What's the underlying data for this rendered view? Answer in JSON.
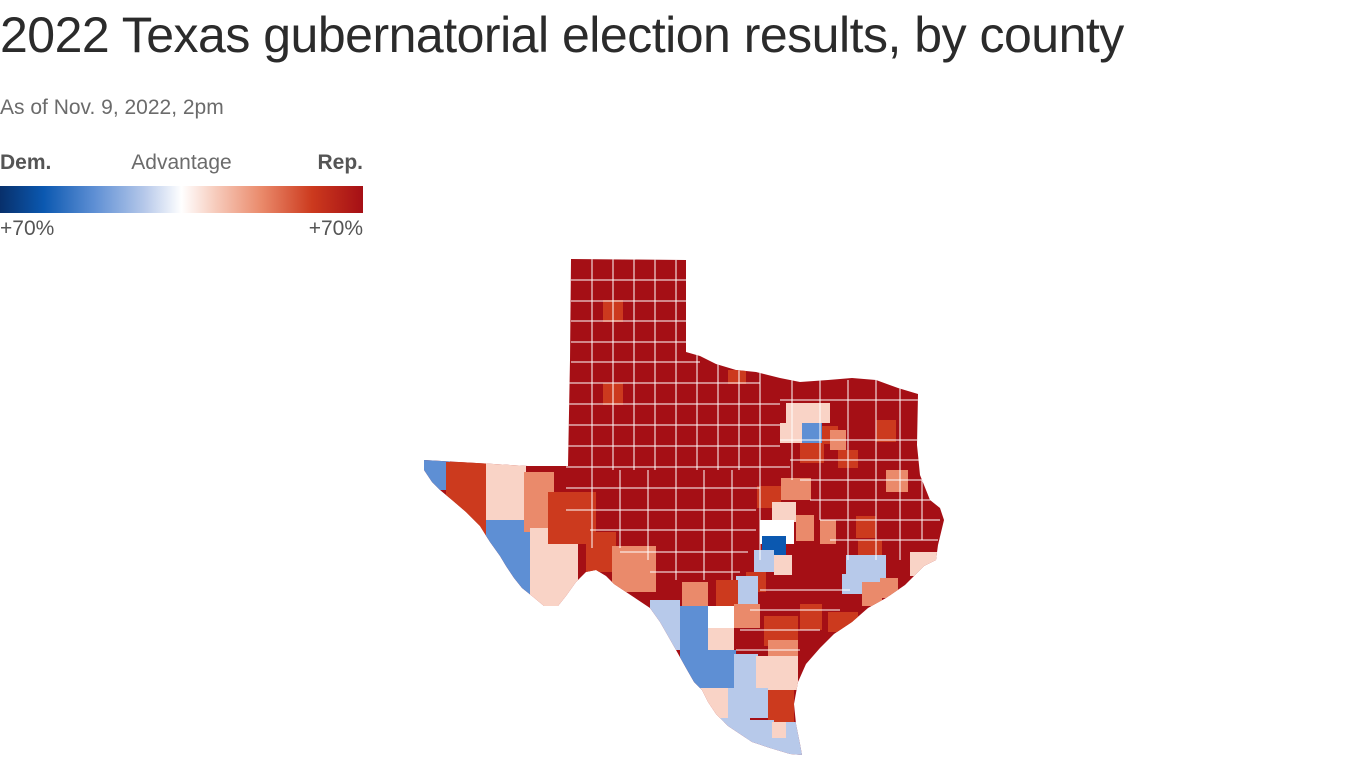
{
  "header": {
    "title": "2022 Texas gubernatorial election results, by county",
    "subtitle": "As of Nov. 9, 2022, 2pm"
  },
  "legend": {
    "left_label": "Dem.",
    "center_label": "Advantage",
    "right_label": "Rep.",
    "left_value": "+70%",
    "right_value": "+70%"
  },
  "colors": {
    "dem_strong": "#0b58b0",
    "dem_mid": "#5e8fd4",
    "dem_light": "#b7c9ea",
    "neutral": "#ffffff",
    "rep_light": "#f9d3c6",
    "rep_mid": "#ea8a6b",
    "rep_strong": "#cc3a1e",
    "rep_max": "#a50f15",
    "county_border": "#ffffff"
  },
  "map": {
    "state": "Texas"
  }
}
